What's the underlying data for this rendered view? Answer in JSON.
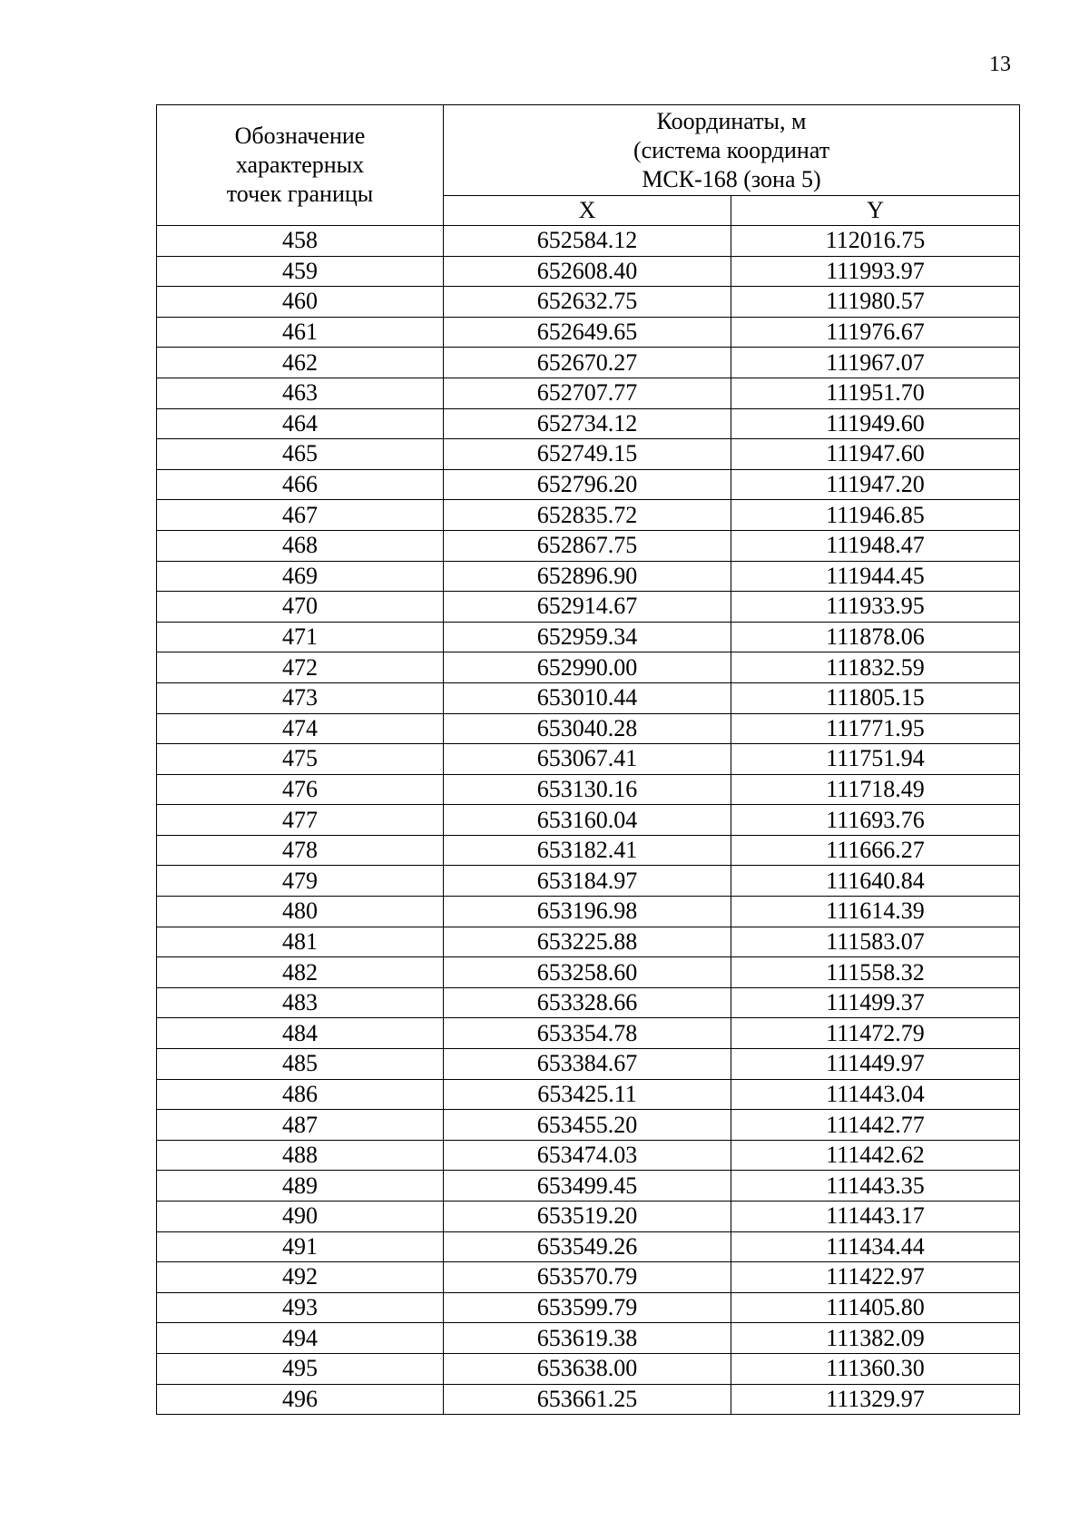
{
  "page_number": "13",
  "table": {
    "header": {
      "point_label_lines": [
        "Обозначение",
        "характерных",
        "точек границы"
      ],
      "coords_label_lines": [
        "Координаты, м",
        "(система координат",
        "МСК-168 (зона 5)"
      ],
      "x_label": "X",
      "y_label": "Y"
    },
    "rows": [
      [
        "458",
        "652584.12",
        "112016.75"
      ],
      [
        "459",
        "652608.40",
        "111993.97"
      ],
      [
        "460",
        "652632.75",
        "111980.57"
      ],
      [
        "461",
        "652649.65",
        "111976.67"
      ],
      [
        "462",
        "652670.27",
        "111967.07"
      ],
      [
        "463",
        "652707.77",
        "111951.70"
      ],
      [
        "464",
        "652734.12",
        "111949.60"
      ],
      [
        "465",
        "652749.15",
        "111947.60"
      ],
      [
        "466",
        "652796.20",
        "111947.20"
      ],
      [
        "467",
        "652835.72",
        "111946.85"
      ],
      [
        "468",
        "652867.75",
        "111948.47"
      ],
      [
        "469",
        "652896.90",
        "111944.45"
      ],
      [
        "470",
        "652914.67",
        "111933.95"
      ],
      [
        "471",
        "652959.34",
        "111878.06"
      ],
      [
        "472",
        "652990.00",
        "111832.59"
      ],
      [
        "473",
        "653010.44",
        "111805.15"
      ],
      [
        "474",
        "653040.28",
        "111771.95"
      ],
      [
        "475",
        "653067.41",
        "111751.94"
      ],
      [
        "476",
        "653130.16",
        "111718.49"
      ],
      [
        "477",
        "653160.04",
        "111693.76"
      ],
      [
        "478",
        "653182.41",
        "111666.27"
      ],
      [
        "479",
        "653184.97",
        "111640.84"
      ],
      [
        "480",
        "653196.98",
        "111614.39"
      ],
      [
        "481",
        "653225.88",
        "111583.07"
      ],
      [
        "482",
        "653258.60",
        "111558.32"
      ],
      [
        "483",
        "653328.66",
        "111499.37"
      ],
      [
        "484",
        "653354.78",
        "111472.79"
      ],
      [
        "485",
        "653384.67",
        "111449.97"
      ],
      [
        "486",
        "653425.11",
        "111443.04"
      ],
      [
        "487",
        "653455.20",
        "111442.77"
      ],
      [
        "488",
        "653474.03",
        "111442.62"
      ],
      [
        "489",
        "653499.45",
        "111443.35"
      ],
      [
        "490",
        "653519.20",
        "111443.17"
      ],
      [
        "491",
        "653549.26",
        "111434.44"
      ],
      [
        "492",
        "653570.79",
        "111422.97"
      ],
      [
        "493",
        "653599.79",
        "111405.80"
      ],
      [
        "494",
        "653619.38",
        "111382.09"
      ],
      [
        "495",
        "653638.00",
        "111360.30"
      ],
      [
        "496",
        "653661.25",
        "111329.97"
      ]
    ]
  }
}
